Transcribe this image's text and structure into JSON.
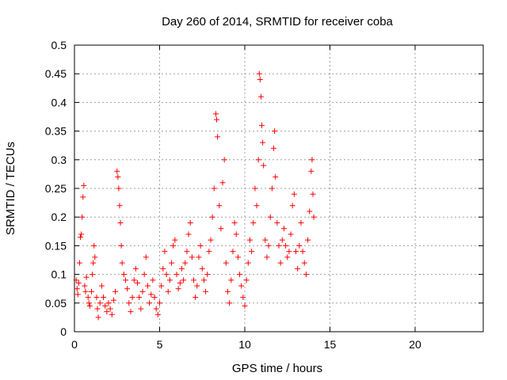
{
  "chart_data": {
    "type": "scatter",
    "title": "Day 260 of 2014, SRMTID for receiver coba",
    "xlabel": "GPS time / hours",
    "ylabel": "SRMTID / TECUs",
    "xlim": [
      0,
      24
    ],
    "ylim": [
      0,
      0.5
    ],
    "x_ticks": [
      0,
      5,
      10,
      15,
      20
    ],
    "x_tick_labels": [
      "0",
      "5",
      "10",
      "15",
      "20"
    ],
    "y_ticks": [
      0,
      0.05,
      0.1,
      0.15,
      0.2,
      0.25,
      0.3,
      0.35,
      0.4,
      0.45,
      0.5
    ],
    "y_tick_labels": [
      "0",
      "0.05",
      "0.1",
      "0.15",
      "0.2",
      "0.25",
      "0.3",
      "0.35",
      "0.4",
      "0.45",
      "0.5"
    ],
    "grid": true,
    "marker": "+",
    "marker_color": "#ff0000",
    "series": [
      {
        "name": "SRMTID",
        "points": [
          [
            0.1,
            0.09
          ],
          [
            0.15,
            0.075
          ],
          [
            0.2,
            0.065
          ],
          [
            0.25,
            0.085
          ],
          [
            0.3,
            0.12
          ],
          [
            0.35,
            0.165
          ],
          [
            0.4,
            0.17
          ],
          [
            0.45,
            0.2
          ],
          [
            0.5,
            0.235
          ],
          [
            0.55,
            0.255
          ],
          [
            0.6,
            0.08
          ],
          [
            0.65,
            0.07
          ],
          [
            0.7,
            0.095
          ],
          [
            0.8,
            0.06
          ],
          [
            0.85,
            0.05
          ],
          [
            0.9,
            0.045
          ],
          [
            1.0,
            0.07
          ],
          [
            1.05,
            0.1
          ],
          [
            1.1,
            0.12
          ],
          [
            1.15,
            0.15
          ],
          [
            1.2,
            0.13
          ],
          [
            1.3,
            0.06
          ],
          [
            1.35,
            0.04
          ],
          [
            1.4,
            0.025
          ],
          [
            1.5,
            0.05
          ],
          [
            1.6,
            0.08
          ],
          [
            1.7,
            0.06
          ],
          [
            1.8,
            0.045
          ],
          [
            1.9,
            0.035
          ],
          [
            2.0,
            0.05
          ],
          [
            2.1,
            0.04
          ],
          [
            2.2,
            0.03
          ],
          [
            2.3,
            0.055
          ],
          [
            2.4,
            0.07
          ],
          [
            2.5,
            0.28
          ],
          [
            2.55,
            0.27
          ],
          [
            2.6,
            0.25
          ],
          [
            2.65,
            0.22
          ],
          [
            2.7,
            0.19
          ],
          [
            2.75,
            0.15
          ],
          [
            2.8,
            0.12
          ],
          [
            2.9,
            0.1
          ],
          [
            3.0,
            0.09
          ],
          [
            3.1,
            0.075
          ],
          [
            3.2,
            0.05
          ],
          [
            3.3,
            0.035
          ],
          [
            3.4,
            0.06
          ],
          [
            3.5,
            0.09
          ],
          [
            3.6,
            0.11
          ],
          [
            3.7,
            0.085
          ],
          [
            3.8,
            0.06
          ],
          [
            3.9,
            0.04
          ],
          [
            4.0,
            0.07
          ],
          [
            4.1,
            0.1
          ],
          [
            4.2,
            0.13
          ],
          [
            4.3,
            0.08
          ],
          [
            4.4,
            0.05
          ],
          [
            4.5,
            0.065
          ],
          [
            4.6,
            0.09
          ],
          [
            4.7,
            0.06
          ],
          [
            4.8,
            0.04
          ],
          [
            4.9,
            0.03
          ],
          [
            5.0,
            0.05
          ],
          [
            5.1,
            0.08
          ],
          [
            5.2,
            0.11
          ],
          [
            5.3,
            0.14
          ],
          [
            5.4,
            0.1
          ],
          [
            5.5,
            0.07
          ],
          [
            5.6,
            0.09
          ],
          [
            5.7,
            0.12
          ],
          [
            5.8,
            0.15
          ],
          [
            5.9,
            0.16
          ],
          [
            6.0,
            0.1
          ],
          [
            6.1,
            0.075
          ],
          [
            6.2,
            0.085
          ],
          [
            6.3,
            0.11
          ],
          [
            6.4,
            0.09
          ],
          [
            6.5,
            0.12
          ],
          [
            6.6,
            0.14
          ],
          [
            6.7,
            0.17
          ],
          [
            6.8,
            0.19
          ],
          [
            6.9,
            0.13
          ],
          [
            7.0,
            0.09
          ],
          [
            7.1,
            0.06
          ],
          [
            7.2,
            0.08
          ],
          [
            7.3,
            0.13
          ],
          [
            7.4,
            0.15
          ],
          [
            7.5,
            0.11
          ],
          [
            7.6,
            0.09
          ],
          [
            7.7,
            0.07
          ],
          [
            7.8,
            0.1
          ],
          [
            7.9,
            0.14
          ],
          [
            8.0,
            0.16
          ],
          [
            8.1,
            0.2
          ],
          [
            8.2,
            0.25
          ],
          [
            8.3,
            0.38
          ],
          [
            8.35,
            0.37
          ],
          [
            8.4,
            0.34
          ],
          [
            8.5,
            0.22
          ],
          [
            8.6,
            0.18
          ],
          [
            8.7,
            0.26
          ],
          [
            8.8,
            0.3
          ],
          [
            8.9,
            0.12
          ],
          [
            9.0,
            0.07
          ],
          [
            9.1,
            0.05
          ],
          [
            9.2,
            0.09
          ],
          [
            9.3,
            0.14
          ],
          [
            9.4,
            0.19
          ],
          [
            9.5,
            0.17
          ],
          [
            9.6,
            0.13
          ],
          [
            9.7,
            0.1
          ],
          [
            9.8,
            0.08
          ],
          [
            9.9,
            0.06
          ],
          [
            10.0,
            0.045
          ],
          [
            10.1,
            0.09
          ],
          [
            10.2,
            0.12
          ],
          [
            10.3,
            0.16
          ],
          [
            10.4,
            0.14
          ],
          [
            10.5,
            0.19
          ],
          [
            10.6,
            0.25
          ],
          [
            10.7,
            0.22
          ],
          [
            10.8,
            0.3
          ],
          [
            10.85,
            0.45
          ],
          [
            10.9,
            0.44
          ],
          [
            10.95,
            0.41
          ],
          [
            11.0,
            0.36
          ],
          [
            11.05,
            0.33
          ],
          [
            11.1,
            0.29
          ],
          [
            11.2,
            0.16
          ],
          [
            11.3,
            0.13
          ],
          [
            11.4,
            0.15
          ],
          [
            11.5,
            0.2
          ],
          [
            11.6,
            0.25
          ],
          [
            11.7,
            0.32
          ],
          [
            11.75,
            0.35
          ],
          [
            11.8,
            0.27
          ],
          [
            11.9,
            0.19
          ],
          [
            12.0,
            0.15
          ],
          [
            12.1,
            0.12
          ],
          [
            12.2,
            0.16
          ],
          [
            12.3,
            0.18
          ],
          [
            12.4,
            0.15
          ],
          [
            12.5,
            0.13
          ],
          [
            12.6,
            0.14
          ],
          [
            12.7,
            0.17
          ],
          [
            12.8,
            0.22
          ],
          [
            12.9,
            0.24
          ],
          [
            13.0,
            0.14
          ],
          [
            13.1,
            0.11
          ],
          [
            13.2,
            0.15
          ],
          [
            13.3,
            0.19
          ],
          [
            13.4,
            0.14
          ],
          [
            13.5,
            0.12
          ],
          [
            13.6,
            0.1
          ],
          [
            13.7,
            0.16
          ],
          [
            13.8,
            0.21
          ],
          [
            13.9,
            0.28
          ],
          [
            13.95,
            0.3
          ],
          [
            14.0,
            0.24
          ],
          [
            14.05,
            0.2
          ]
        ]
      }
    ]
  }
}
